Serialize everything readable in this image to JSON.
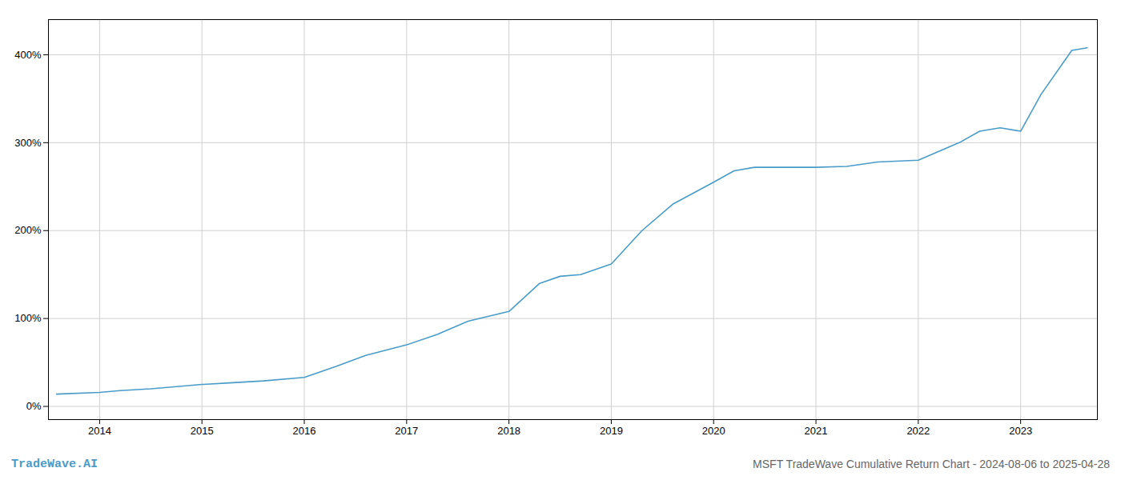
{
  "chart_data": {
    "type": "line",
    "title": "MSFT TradeWave Cumulative Return Chart - 2024-08-06 to 2025-04-28",
    "annotations": [
      "TradeWave.AI"
    ],
    "color": "#4a9cc8",
    "x": [
      2013.58,
      2014.0,
      2014.2,
      2014.5,
      2014.8,
      2015.0,
      2015.3,
      2015.6,
      2016.0,
      2016.3,
      2016.6,
      2017.0,
      2017.3,
      2017.6,
      2018.0,
      2018.3,
      2018.5,
      2018.7,
      2019.0,
      2019.3,
      2019.6,
      2020.0,
      2020.2,
      2020.4,
      2020.6,
      2021.0,
      2021.3,
      2021.6,
      2022.0,
      2022.2,
      2022.4,
      2022.6,
      2022.8,
      2023.0,
      2023.2,
      2023.5,
      2023.65
    ],
    "values": [
      14,
      16,
      18,
      20,
      23,
      25,
      27,
      29,
      33,
      45,
      58,
      70,
      82,
      97,
      108,
      140,
      148,
      150,
      162,
      200,
      230,
      255,
      268,
      272,
      272,
      272,
      273,
      278,
      280,
      290,
      300,
      313,
      317,
      313,
      355,
      405,
      408
    ],
    "xlim": [
      2013.5,
      2023.75
    ],
    "xticks": [
      2014,
      2015,
      2016,
      2017,
      2018,
      2019,
      2020,
      2021,
      2022,
      2023
    ],
    "ylim": [
      -15,
      440
    ],
    "yticks": [
      {
        "value": 0,
        "label": "0%"
      },
      {
        "value": 100,
        "label": "100%"
      },
      {
        "value": 200,
        "label": "200%"
      },
      {
        "value": 300,
        "label": "300%"
      },
      {
        "value": 400,
        "label": "400%"
      }
    ],
    "grid": true
  }
}
